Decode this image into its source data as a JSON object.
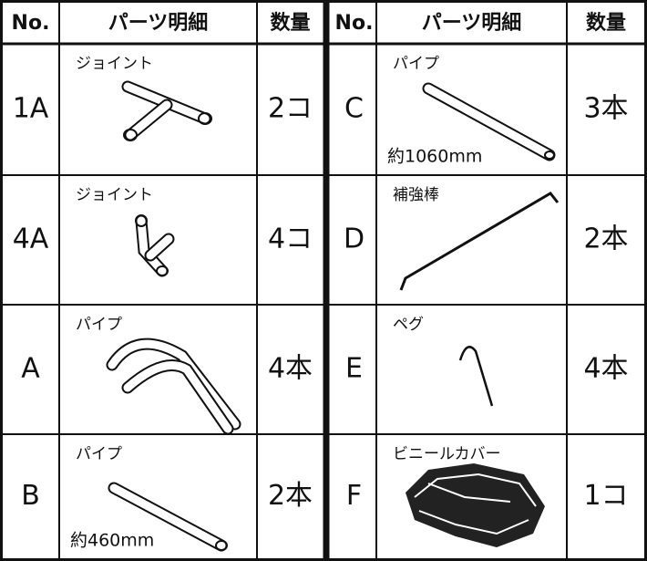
{
  "header": {
    "left": [
      "No.",
      "パーツ明細",
      "数量"
    ],
    "right": [
      "No.",
      "パーツ明細",
      "数量"
    ]
  },
  "left_rows": [
    {
      "no": "1A",
      "name": "ジョイント",
      "qty": "2コ"
    },
    {
      "no": "4A",
      "name": "ジョイント",
      "qty": "4コ"
    },
    {
      "no": "A",
      "name": "パイプ",
      "qty": "4本"
    },
    {
      "no": "B",
      "name": "パイプ",
      "note": "約460mm",
      "qty": "2本"
    }
  ],
  "right_rows": [
    {
      "no": "C",
      "name": "パイプ",
      "note": "約1060mm",
      "qty": "3本"
    },
    {
      "no": "D",
      "name": "補強棒",
      "qty": "2本"
    },
    {
      "no": "E",
      "name": "ペグ",
      "qty": "4本"
    },
    {
      "no": "F",
      "name": "ビニールカバー",
      "qty": "1コ"
    }
  ]
}
